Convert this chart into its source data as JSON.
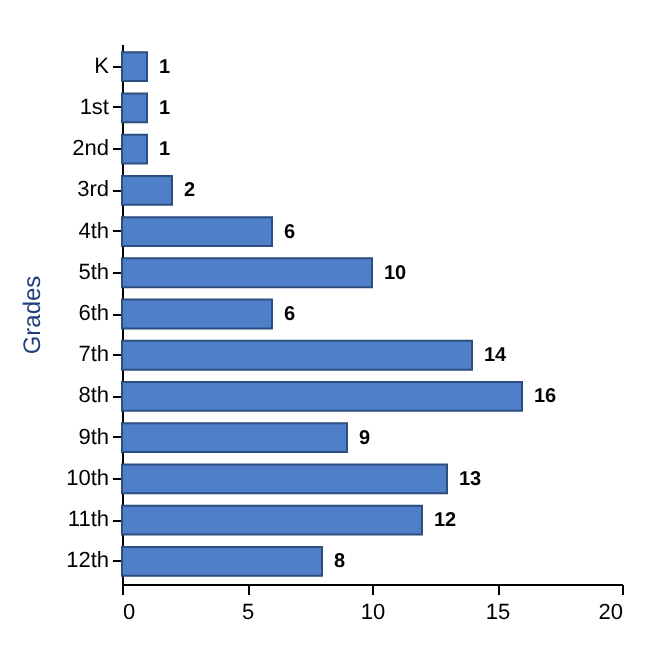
{
  "chart_data": {
    "type": "bar",
    "orientation": "horizontal",
    "ylabel": "Grades",
    "categories": [
      "K",
      "1st",
      "2nd",
      "3rd",
      "4th",
      "5th",
      "6th",
      "7th",
      "8th",
      "9th",
      "10th",
      "11th",
      "12th"
    ],
    "values": [
      1,
      1,
      1,
      2,
      6,
      10,
      6,
      14,
      16,
      9,
      13,
      12,
      8
    ],
    "color": "#4f7fc9",
    "xlim": [
      0,
      20
    ],
    "xticks": [
      0,
      5,
      10,
      15,
      20
    ],
    "grid": false,
    "data_labels": true
  }
}
